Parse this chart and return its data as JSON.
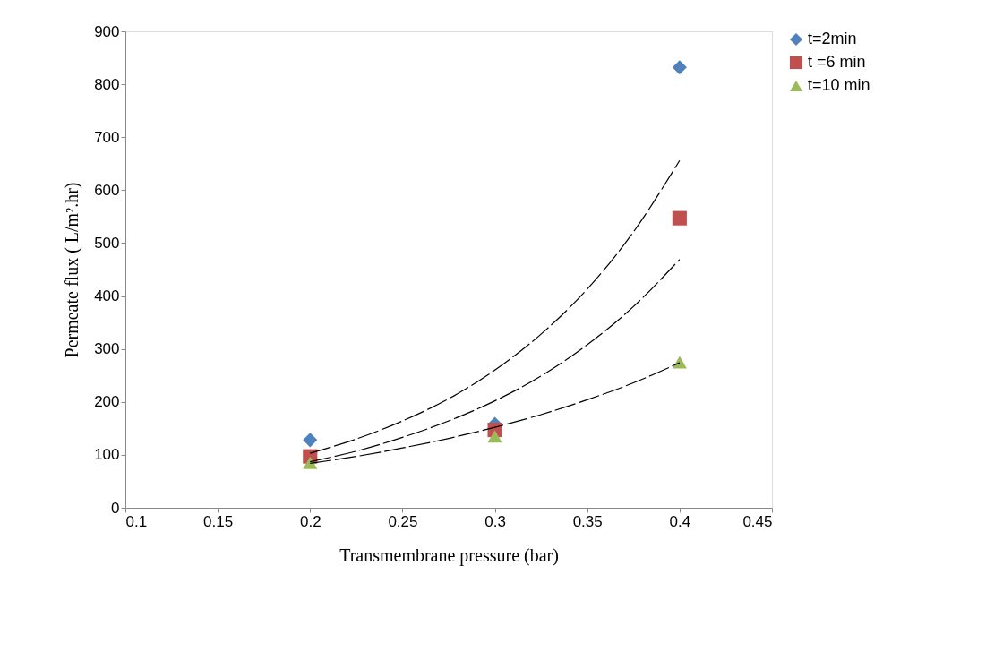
{
  "chart_data": {
    "type": "scatter",
    "xlabel": "Transmembrane pressure (bar)",
    "ylabel": "Permeate flux ( L/m².hr)",
    "x": [
      0.2,
      0.3,
      0.4
    ],
    "series": [
      {
        "name": "t=2min",
        "color": "#4f81bd",
        "marker": "diamond",
        "values": [
          128,
          158,
          832
        ]
      },
      {
        "name": "t =6 min",
        "color": "#c0504d",
        "marker": "square",
        "values": [
          97,
          147,
          547
        ]
      },
      {
        "name": "t=10 min",
        "color": "#9bbb59",
        "marker": "triangle",
        "values": [
          85,
          135,
          275
        ]
      },
      {
        "type": "line",
        "color": "#000000",
        "marker": "none",
        "line_style": "dashed",
        "x": [
          0.2,
          0.225,
          0.25,
          0.275,
          0.3,
          0.325,
          0.35,
          0.375,
          0.4
        ],
        "values": [
          103,
          130,
          164,
          206,
          260,
          328,
          413,
          521,
          656
        ]
      },
      {
        "type": "line",
        "color": "#000000",
        "marker": "none",
        "line_style": "dashed",
        "x": [
          0.2,
          0.225,
          0.25,
          0.275,
          0.3,
          0.325,
          0.35,
          0.375,
          0.4
        ],
        "values": [
          87,
          107,
          133,
          164,
          202,
          249,
          308,
          380,
          469
        ]
      },
      {
        "type": "line",
        "color": "#000000",
        "marker": "none",
        "line_style": "dashed",
        "x": [
          0.2,
          0.225,
          0.25,
          0.275,
          0.3,
          0.325,
          0.35,
          0.375,
          0.4
        ],
        "values": [
          84,
          97,
          113,
          131,
          152,
          176,
          204,
          236,
          274
        ]
      }
    ],
    "xlim": [
      0.1,
      0.45
    ],
    "xticks": [
      0.1,
      0.15,
      0.2,
      0.25,
      0.3,
      0.35,
      0.4,
      0.45
    ],
    "ylim": [
      0,
      900
    ],
    "yticks": [
      0,
      100,
      200,
      300,
      400,
      500,
      600,
      700,
      800,
      900
    ],
    "grid": false,
    "legend": "top right"
  }
}
